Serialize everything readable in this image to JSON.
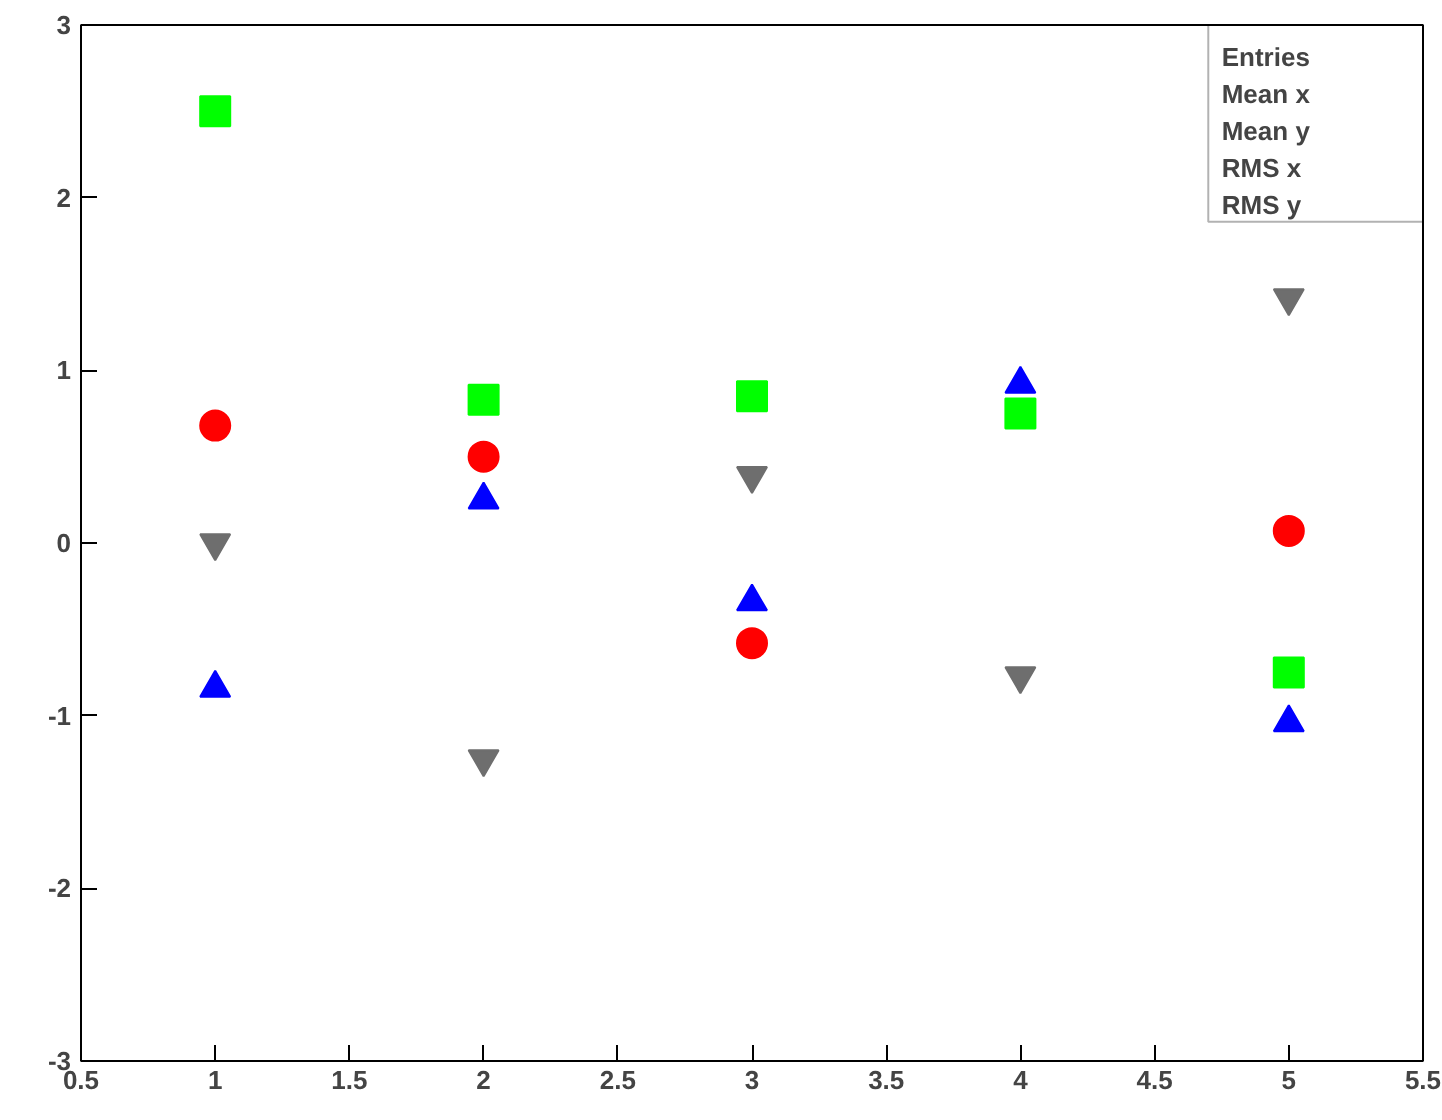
{
  "chart_data": {
    "type": "scatter",
    "x": [
      1,
      2,
      3,
      4,
      5
    ],
    "series": [
      {
        "color": "#00ff00",
        "marker": "square",
        "values": [
          2.5,
          0.83,
          0.85,
          0.75,
          -0.75
        ]
      },
      {
        "color": "#ff0000",
        "marker": "circle",
        "values": [
          0.68,
          0.5,
          -0.58,
          null,
          0.07
        ]
      },
      {
        "color": "#0000ff",
        "marker": "triangle",
        "values": [
          -0.84,
          0.25,
          -0.34,
          0.92,
          -1.04
        ]
      },
      {
        "color": "#6e6e6e",
        "values": [
          0.0,
          -1.25,
          0.39,
          -0.77,
          1.42
        ]
      }
    ],
    "xlim": [
      0.5,
      5.5
    ],
    "xticks": [
      0.5,
      1,
      1.5,
      2,
      2.5,
      3,
      3.5,
      4,
      4.5,
      5,
      5.5
    ],
    "ylim": [
      -3,
      3
    ],
    "yticks": [
      -3,
      -2,
      -1,
      0,
      1,
      2,
      3
    ],
    "grid": false,
    "annotations": [
      "Entries",
      "Mean x",
      "Mean y",
      "RMS x",
      "RMS y"
    ]
  }
}
